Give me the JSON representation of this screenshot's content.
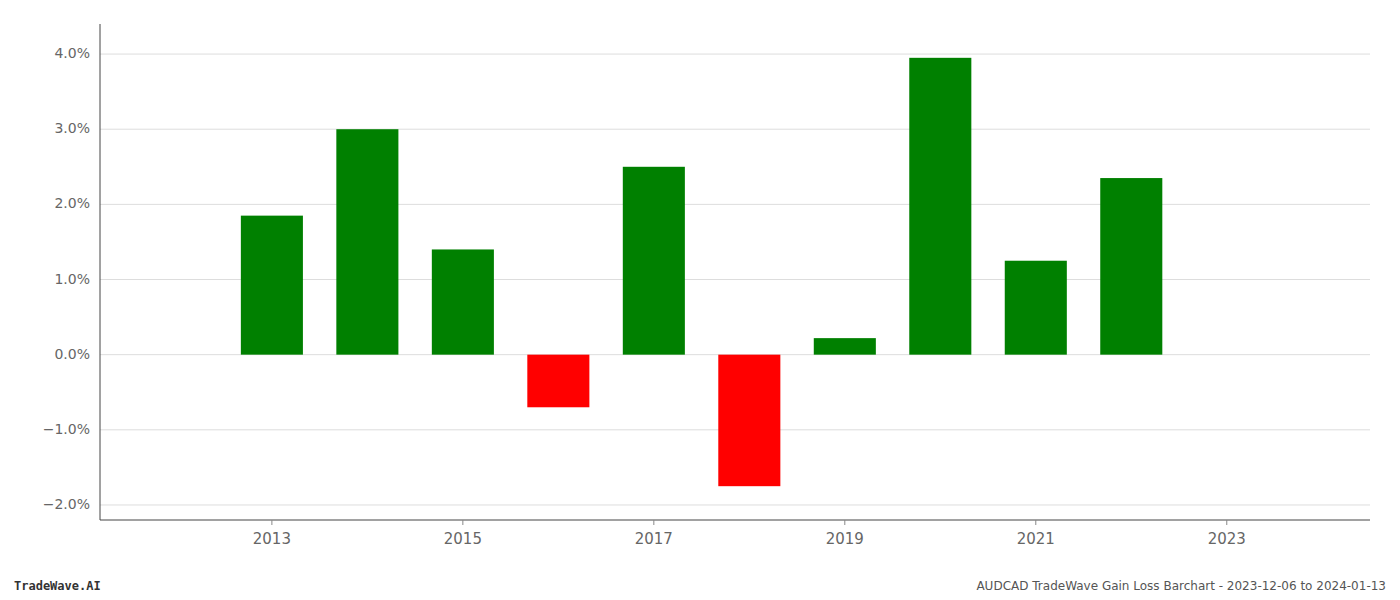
{
  "chart_data": {
    "type": "bar",
    "x": [
      2013,
      2014,
      2015,
      2016,
      2017,
      2018,
      2019,
      2020,
      2021,
      2022
    ],
    "values": [
      0.0185,
      0.03,
      0.014,
      -0.007,
      0.025,
      -0.0175,
      0.0022,
      0.0395,
      0.0125,
      0.0235
    ],
    "colors": [
      "#008000",
      "#008000",
      "#008000",
      "#ff0000",
      "#008000",
      "#ff0000",
      "#008000",
      "#008000",
      "#008000",
      "#008000"
    ],
    "xlim": [
      2011.2,
      2024.5
    ],
    "xticks": [
      2013,
      2015,
      2017,
      2019,
      2021,
      2023
    ],
    "ylim": [
      -0.022,
      0.044
    ],
    "yticks": [
      {
        "value": -0.02,
        "label": "−2.0%"
      },
      {
        "value": -0.01,
        "label": "−1.0%"
      },
      {
        "value": 0.0,
        "label": "0.0%"
      },
      {
        "value": 0.01,
        "label": "1.0%"
      },
      {
        "value": 0.02,
        "label": "2.0%"
      },
      {
        "value": 0.03,
        "label": "3.0%"
      },
      {
        "value": 0.04,
        "label": "4.0%"
      }
    ],
    "grid": true,
    "annotations": [
      "TradeWave.AI",
      "AUDCAD TradeWave Gain Loss Barchart - 2023-12-06 to 2024-01-13"
    ]
  }
}
